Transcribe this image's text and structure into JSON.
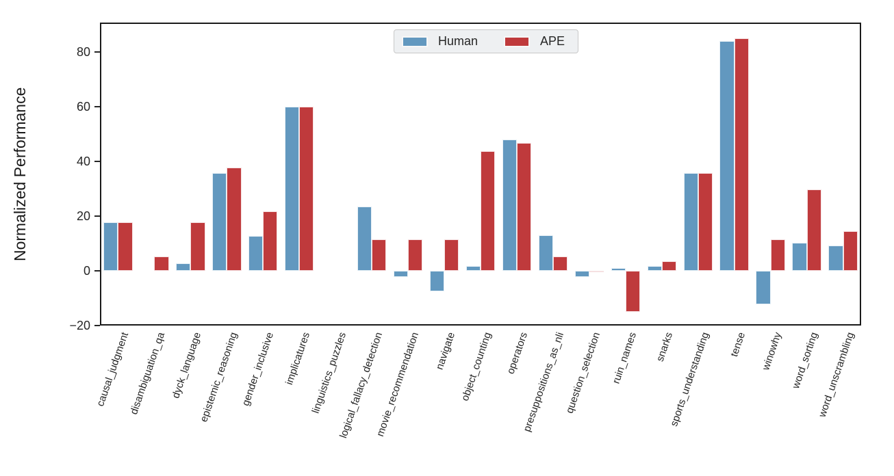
{
  "figure": {
    "ylabel": "Normalized Performance",
    "background_color": "#ffffff",
    "axis_color": "#1a1a1a",
    "text_color": "#262626"
  },
  "legend": {
    "human_label": "Human",
    "ape_label": "APE",
    "human_color": "#6298BF",
    "ape_color": "#BF3A3C"
  },
  "chart_data": {
    "type": "bar",
    "title": "",
    "xlabel": "",
    "ylabel": "Normalized Performance",
    "ylim": [
      -20,
      90.75
    ],
    "yticks": [
      80,
      60,
      40,
      20,
      0,
      -20
    ],
    "grid": false,
    "legend_position": "top-center",
    "bar_edge_color": "#ffffff",
    "categories": [
      "causal_judgment",
      "disambiguation_qa",
      "dyck_language",
      "epistemic_reasoning",
      "gender_inclusive",
      "implicatures",
      "linguistics_puzzles",
      "logical_fallacy_detection",
      "movie_recommendation",
      "navigate",
      "object_counting",
      "operators",
      "presuppositions_as_nli",
      "question_selection",
      "ruin_names",
      "snarks",
      "sports_understanding",
      "tense",
      "winowhy",
      "word_sorting",
      "word_unscrambling"
    ],
    "series": [
      {
        "name": "Human",
        "color": "#6298BF",
        "values": [
          17.8,
          0,
          2.8,
          35.8,
          12.8,
          60,
          0,
          23.6,
          -2.3,
          -7.5,
          1.7,
          47.9,
          12.9,
          -2.2,
          1.0,
          1.8,
          35.7,
          84,
          -12.3,
          10.3,
          9.3
        ]
      },
      {
        "name": "APE",
        "color": "#BF3A3C",
        "values": [
          17.8,
          5.2,
          17.8,
          37.8,
          21.7,
          60,
          0,
          11.4,
          11.4,
          11.4,
          43.7,
          46.7,
          5.2,
          -0.5,
          -15.0,
          3.5,
          35.8,
          85,
          11.4,
          29.8,
          14.6
        ]
      }
    ]
  }
}
